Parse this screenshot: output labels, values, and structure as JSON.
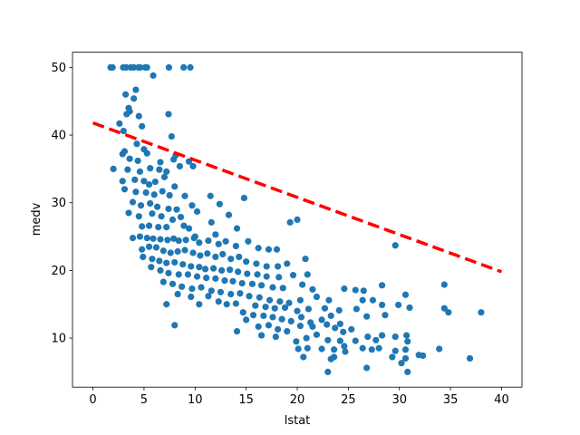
{
  "chart_data": {
    "type": "scatter",
    "xlabel": "lstat",
    "ylabel": "medv",
    "color": "#1f77b4",
    "x": [
      1.73,
      1.92,
      2.96,
      3.26,
      3.7,
      4.0,
      4.45,
      4.63,
      5.12,
      5.29,
      7.44,
      8.88,
      9.53,
      5.9,
      3.2,
      4.2,
      3.5,
      4.0,
      3.6,
      3.3,
      4.5,
      2.6,
      4.8,
      7.4,
      3.0,
      7.7,
      4.3,
      3.1,
      2.9,
      3.6,
      4.4,
      5.0,
      5.3,
      6.6,
      7.9,
      8.1,
      9.4,
      2.0,
      3.4,
      4.6,
      5.6,
      6.5,
      7.2,
      8.5,
      9.8,
      4.1,
      5.0,
      5.5,
      6.1,
      7.0,
      8.0,
      2.9,
      3.1,
      4.2,
      5.2,
      6.0,
      6.8,
      7.5,
      9.0,
      11.5,
      12.4,
      14.8,
      3.9,
      4.7,
      5.6,
      6.3,
      7.4,
      8.2,
      9.7,
      3.5,
      4.5,
      5.8,
      6.7,
      7.8,
      8.6,
      10.2,
      11.6,
      13.3,
      19.3,
      20.0,
      4.8,
      5.5,
      6.4,
      7.2,
      8.9,
      9.4,
      10.0,
      12.0,
      14.1,
      3.9,
      4.6,
      5.3,
      5.9,
      6.6,
      7.3,
      7.9,
      8.4,
      9.1,
      9.9,
      10.4,
      11.3,
      12.3,
      13.0,
      14.0,
      15.2,
      16.2,
      17.2,
      18.0,
      29.6,
      4.8,
      5.5,
      6.2,
      6.9,
      7.6,
      8.3,
      9.0,
      9.8,
      10.5,
      11.2,
      12.0,
      12.7,
      13.5,
      14.3,
      15.0,
      16.0,
      17.0,
      18.1,
      19.0,
      20.8,
      4.9,
      5.8,
      6.5,
      7.2,
      8.0,
      8.8,
      9.6,
      10.4,
      11.0,
      11.8,
      12.6,
      13.4,
      14.2,
      15.1,
      16.1,
      17.0,
      18.2,
      19.6,
      21.0,
      5.7,
      6.6,
      7.4,
      8.4,
      9.3,
      10.2,
      11.1,
      12.0,
      12.9,
      13.7,
      14.6,
      15.6,
      16.5,
      17.6,
      18.6,
      20.5,
      21.5,
      24.6,
      25.7,
      26.5,
      28.3,
      34.4,
      6.9,
      7.8,
      8.7,
      9.7,
      10.6,
      11.6,
      12.5,
      13.5,
      14.4,
      15.3,
      16.3,
      17.3,
      18.3,
      19.2,
      20.3,
      21.9,
      23.1,
      26.4,
      27.4,
      30.6,
      8.3,
      9.6,
      11.3,
      12.3,
      13.1,
      14.0,
      15.9,
      16.9,
      17.8,
      18.8,
      20.0,
      21.1,
      22.7,
      24.1,
      25.8,
      28.3,
      29.9,
      31.0,
      7.2,
      10.4,
      14.7,
      15.7,
      16.7,
      17.6,
      18.5,
      19.4,
      20.4,
      21.3,
      22.4,
      23.3,
      24.2,
      26.8,
      28.6,
      34.4,
      34.8,
      38.0,
      15.0,
      16.2,
      17.2,
      18.1,
      19.0,
      20.3,
      21.5,
      22.9,
      23.7,
      24.5,
      25.3,
      26.9,
      29.6,
      30.7,
      14.1,
      8.0,
      16.5,
      17.9,
      19.9,
      20.9,
      21.9,
      23.0,
      24.2,
      25.7,
      27.7,
      28.3,
      30.8,
      20.1,
      21.0,
      22.4,
      23.6,
      24.7,
      26.4,
      27.3,
      29.3,
      29.6,
      30.6,
      33.9,
      36.9,
      20.6,
      23.6,
      26.8,
      30.2,
      30.8,
      23.0,
      23.3,
      24.6,
      30.6,
      31.9,
      28.0,
      32.3
    ],
    "values": [
      50,
      50,
      50,
      50,
      50,
      50,
      50,
      50,
      50,
      50,
      50,
      50,
      50,
      48.8,
      46,
      46.7,
      44,
      45.4,
      43.5,
      43.1,
      42.8,
      41.7,
      41.3,
      43.1,
      40.6,
      39.8,
      38.7,
      37.6,
      37.2,
      36.5,
      36.2,
      37.9,
      37.3,
      36.0,
      36.4,
      37.0,
      36.1,
      35.0,
      34.9,
      34.6,
      35.1,
      34.9,
      34.6,
      35.4,
      35.4,
      33.4,
      33.2,
      32.7,
      33.1,
      33.8,
      32.4,
      33.2,
      32.0,
      31.6,
      31.5,
      31.2,
      31.7,
      31.1,
      31.0,
      31.0,
      29.8,
      30.7,
      30.1,
      29.6,
      29.9,
      29.4,
      29.1,
      29.0,
      29.6,
      28.5,
      28.0,
      28.4,
      28.0,
      27.5,
      27.9,
      28.7,
      27.1,
      28.2,
      27.1,
      27.5,
      26.5,
      26.6,
      26.4,
      26.4,
      26.6,
      26.2,
      25.0,
      25.3,
      26.2,
      24.8,
      25.0,
      24.8,
      24.7,
      24.6,
      24.5,
      24.7,
      24.4,
      24.5,
      24.8,
      24.1,
      24.4,
      23.9,
      24.3,
      23.6,
      24.3,
      23.3,
      23.1,
      23.1,
      23.7,
      23.1,
      23.5,
      23.4,
      22.9,
      22.6,
      22.8,
      23.0,
      22.6,
      22.2,
      22.5,
      22.0,
      22.4,
      21.7,
      22.0,
      21.3,
      21.0,
      20.6,
      20.6,
      21.0,
      21.7,
      22.0,
      21.7,
      21.4,
      21.1,
      21.2,
      20.9,
      20.6,
      20.5,
      20.2,
      20.3,
      20.0,
      20.1,
      19.8,
      19.5,
      19.4,
      19.1,
      19.0,
      19.3,
      19.4,
      20.5,
      20.0,
      19.6,
      19.4,
      19.4,
      19.1,
      18.9,
      18.8,
      18.5,
      18.4,
      18.1,
      18.0,
      17.8,
      17.5,
      17.4,
      17.9,
      17.2,
      17.3,
      17.1,
      17.0,
      17.8,
      17.9,
      18.3,
      18.0,
      17.6,
      17.3,
      17.5,
      17.0,
      16.8,
      16.5,
      16.6,
      16.2,
      16.0,
      15.6,
      15.4,
      15.2,
      15.6,
      16.1,
      15.6,
      15.6,
      15.6,
      16.4,
      16.5,
      16.1,
      16.2,
      15.4,
      15.0,
      15.1,
      14.8,
      14.6,
      14.4,
      14.5,
      14.0,
      14.3,
      14.4,
      14.1,
      14.3,
      14.9,
      14.9,
      14.5,
      15.0,
      15.0,
      13.8,
      13.4,
      13.3,
      13.1,
      12.8,
      12.5,
      13.1,
      12.3,
      12.7,
      13.3,
      12.1,
      13.2,
      13.4,
      14.4,
      13.8,
      13.8,
      12.7,
      11.7,
      11.9,
      11.3,
      11.0,
      11.8,
      11.7,
      12.0,
      11.5,
      10.9,
      11.3,
      10.2,
      10.2,
      10.4,
      11.0,
      11.9,
      10.4,
      10.2,
      9.5,
      10.0,
      10.5,
      9.7,
      9.6,
      9.6,
      9.7,
      10.4,
      9.5,
      8.4,
      8.5,
      8.4,
      8.3,
      8.0,
      8.5,
      8.3,
      7.2,
      8.1,
      8.3,
      8.4,
      7.0,
      7.2,
      7.2,
      5.6,
      6.3,
      5.0,
      5.0,
      6.9,
      8.8,
      7.0,
      7.5,
      8.5,
      7.4
    ],
    "lines": [
      {
        "x": [
          0,
          40
        ],
        "values": [
          41.8,
          19.8
        ],
        "color": "#ff0000",
        "dashed": true
      }
    ],
    "xlim": [
      -2,
      42
    ],
    "ylim": [
      2.75,
      52.25
    ],
    "xticks": [
      0,
      5,
      10,
      15,
      20,
      25,
      30,
      35,
      40
    ],
    "yticks": [
      10,
      20,
      30,
      40,
      50
    ],
    "grid": false
  }
}
